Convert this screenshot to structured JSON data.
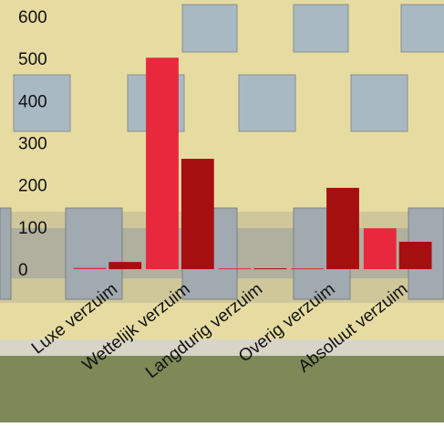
{
  "chart_data": {
    "type": "bar",
    "categories": [
      "Luxe verzuim",
      "Wettelijk verzuim",
      "Langdurig verzuim",
      "Overig verzuim",
      "Absoluut verzuim"
    ],
    "series": [
      {
        "color": "#e8283c",
        "values": [
          3,
          502,
          2,
          2,
          97
        ]
      },
      {
        "color": "#a50f0f",
        "values": [
          17,
          262,
          2,
          193,
          65
        ]
      }
    ],
    "ylim": [
      0,
      600
    ],
    "yticks": [
      0,
      100,
      200,
      300,
      400,
      500,
      600
    ],
    "grid": false
  }
}
